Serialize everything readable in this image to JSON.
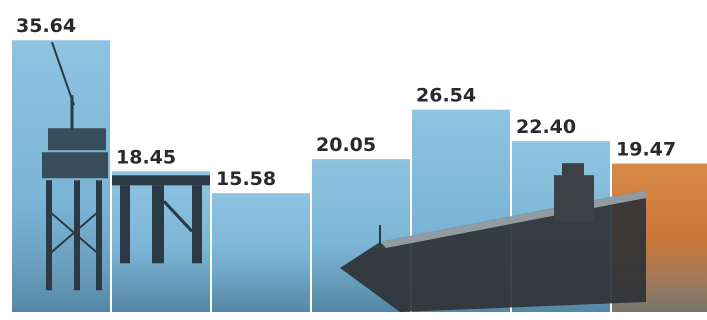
{
  "chart_data": {
    "type": "bar",
    "categories": [
      "",
      "",
      "",
      "",
      "",
      "",
      ""
    ],
    "values": [
      35.64,
      18.45,
      15.58,
      20.05,
      26.54,
      22.4,
      19.47
    ],
    "labels": [
      "35.64",
      "18.45",
      "15.58",
      "20.05",
      "26.54",
      "22.40",
      "19.47"
    ],
    "ylim": [
      0,
      40
    ],
    "title": "",
    "xlabel": "",
    "ylabel": "",
    "grid": false,
    "colors": {
      "bar": "#7ab3d4",
      "bar_last": "#c9773a",
      "water": "#5f93b0",
      "structure": "#2b3a44",
      "ship_hull": "#2f3236"
    }
  }
}
